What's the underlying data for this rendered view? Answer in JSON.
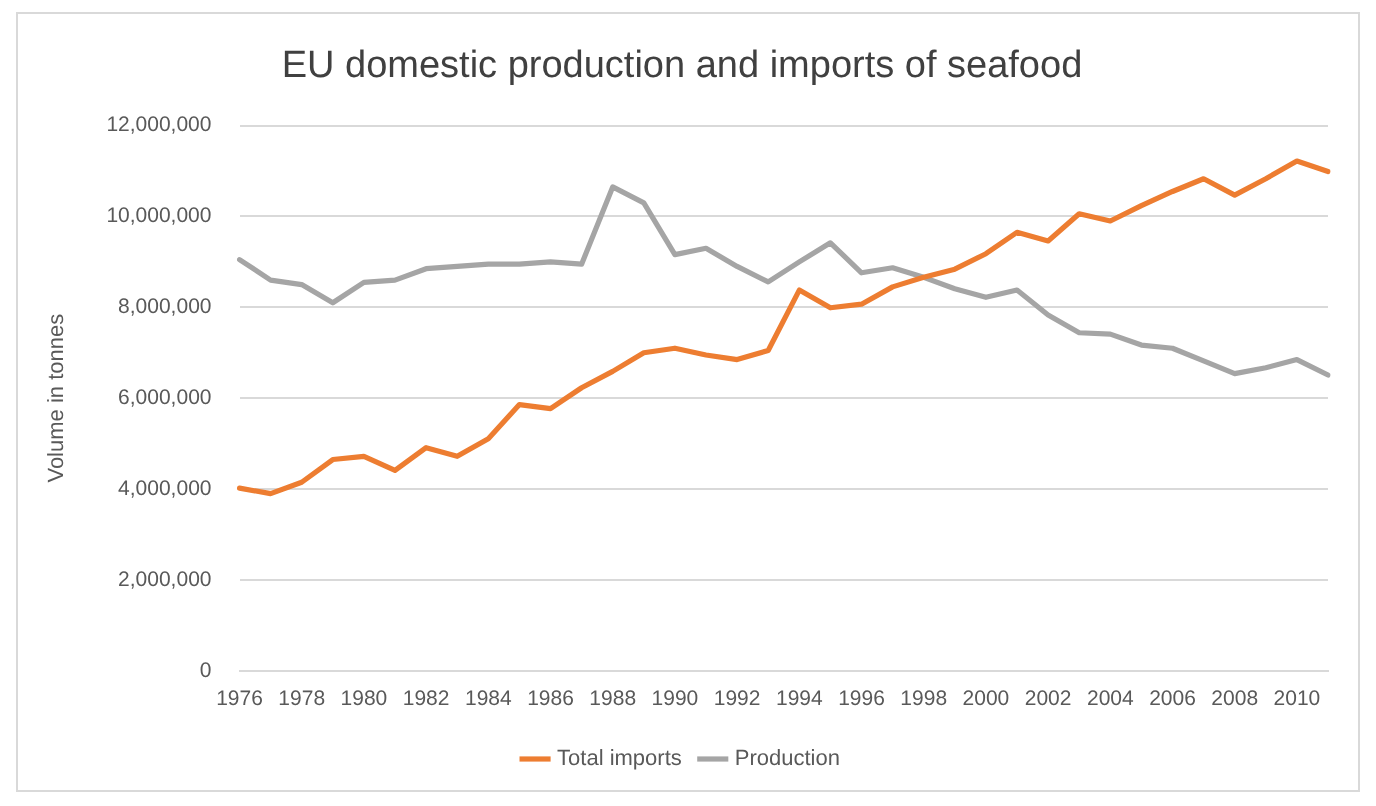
{
  "chart_data": {
    "type": "line",
    "title": "EU domestic production and imports of seafood",
    "ylabel": "Volume in tonnes",
    "categories": [
      "1976",
      null,
      "1978",
      null,
      "1980",
      null,
      "1982",
      null,
      "1984",
      null,
      "1986",
      null,
      "1988",
      null,
      "1990",
      null,
      "1992",
      null,
      "1994",
      null,
      "1996",
      null,
      "1998",
      null,
      "2000",
      null,
      "2002",
      null,
      "2004",
      null,
      "2006",
      null,
      "2008",
      null,
      "2010",
      null
    ],
    "series": [
      {
        "name": "Total imports",
        "color": "#ed7d31",
        "values": [
          4020000,
          3900000,
          4150000,
          4650000,
          4720000,
          4410000,
          4910000,
          4720000,
          5110000,
          5860000,
          5770000,
          6230000,
          6590000,
          7000000,
          7100000,
          6950000,
          6850000,
          7050000,
          8380000,
          7990000,
          8070000,
          8450000,
          8660000,
          8840000,
          9180000,
          9650000,
          9460000,
          10060000,
          9900000,
          10240000,
          10550000,
          10830000,
          10470000,
          10830000,
          11220000,
          10990000
        ]
      },
      {
        "name": "Production",
        "color": "#a5a5a5",
        "values": [
          9050000,
          8600000,
          8500000,
          8100000,
          8550000,
          8600000,
          8850000,
          8900000,
          8950000,
          8950000,
          9000000,
          8950000,
          10650000,
          10300000,
          9160000,
          9300000,
          8900000,
          8560000,
          9000000,
          9420000,
          8760000,
          8870000,
          8660000,
          8410000,
          8220000,
          8380000,
          7830000,
          7440000,
          7410000,
          7170000,
          7100000,
          6820000,
          6540000,
          6670000,
          6850000,
          6510000
        ]
      }
    ],
    "ylim": [
      0,
      12000000
    ],
    "yticks": [
      0,
      {
        "value": 2000000,
        "label": "2,000,000"
      },
      {
        "value": 4000000,
        "label": "4,000,000"
      },
      {
        "value": 6000000,
        "label": "6,000,000"
      },
      {
        "value": 8000000,
        "label": "8,000,000"
      },
      {
        "value": 10000000,
        "label": "10,000,000"
      },
      {
        "value": 12000000,
        "label": "12,000,000"
      }
    ],
    "grid": "y",
    "legend": "bottom",
    "marker": "none",
    "line_style": "solid"
  }
}
